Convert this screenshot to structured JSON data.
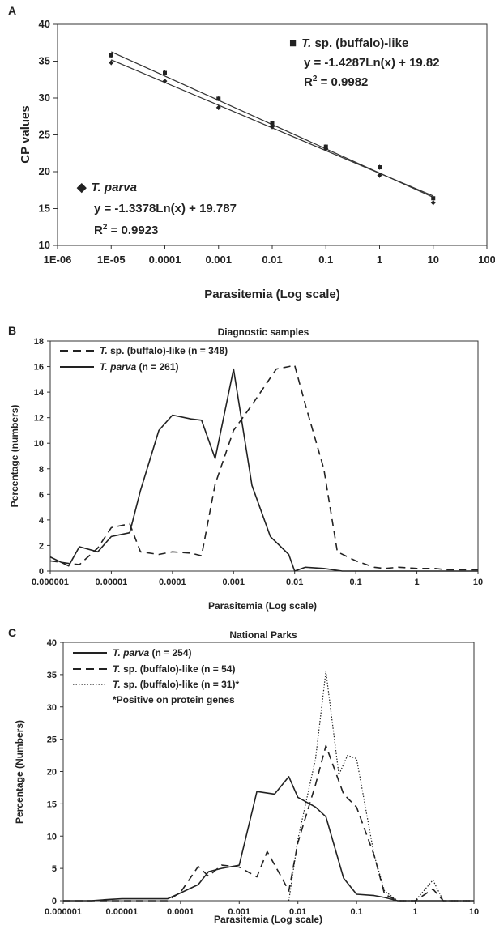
{
  "chart_data": [
    {
      "panel": "A",
      "type": "scatter",
      "xscale": "log",
      "xlim": [
        1e-06,
        100
      ],
      "ylim": [
        10,
        40
      ],
      "ylabel": "CP values",
      "xlabel": "Parasitemia (Log scale)",
      "xticks": [
        1e-06,
        1e-05,
        0.0001,
        0.001,
        0.01,
        0.1,
        1,
        10,
        100
      ],
      "xticklabels": [
        "1E-06",
        "1E-05",
        "0.0001",
        "0.001",
        "0.01",
        "0.1",
        "1",
        "10",
        "100"
      ],
      "yticks": [
        10,
        15,
        20,
        25,
        30,
        35,
        40
      ],
      "series": [
        {
          "name_italic": "T.",
          "name_rest": " sp. (buffalo)-like",
          "marker": "■",
          "equation": "y = -1.4287Ln(x) + 19.82",
          "r2_prefix": "R",
          "r2_sup": "2",
          "r2_value": " = 0.9982",
          "slope": -1.4287,
          "intercept": 19.82,
          "points": [
            [
              1e-05,
              35.8
            ],
            [
              0.0001,
              33.4
            ],
            [
              0.001,
              29.9
            ],
            [
              0.01,
              26.6
            ],
            [
              0.1,
              23.4
            ],
            [
              1,
              20.6
            ],
            [
              10,
              16.4
            ]
          ]
        },
        {
          "name_italic": "T. parva",
          "name_rest": "",
          "marker": "◆",
          "equation": "y = -1.3378Ln(x) + 19.787",
          "r2_prefix": "R",
          "r2_sup": "2",
          "r2_value": " = 0.9923",
          "slope": -1.3378,
          "intercept": 19.787,
          "points": [
            [
              1e-05,
              34.8
            ],
            [
              0.0001,
              32.3
            ],
            [
              0.001,
              28.7
            ],
            [
              0.01,
              26.1
            ],
            [
              0.1,
              23.1
            ],
            [
              1,
              19.5
            ],
            [
              10,
              15.8
            ]
          ]
        }
      ]
    },
    {
      "panel": "B",
      "type": "line",
      "title": "Diagnostic samples",
      "xscale": "log",
      "xlim": [
        1e-06,
        10
      ],
      "ylim": [
        0,
        18
      ],
      "ylabel": "Percentage (numbers)",
      "xlabel": "Parasitemia (Log scale)",
      "xticks": [
        1e-06,
        1e-05,
        0.0001,
        0.001,
        0.01,
        0.1,
        1,
        10
      ],
      "xticklabels": [
        "0.000001",
        "0.00001",
        "0.0001",
        "0.001",
        "0.01",
        "0.1",
        "1",
        "10"
      ],
      "yticks": [
        0,
        2,
        4,
        6,
        8,
        10,
        12,
        14,
        16,
        18
      ],
      "legend": "top-left",
      "series": [
        {
          "name_italic": "T.",
          "name_rest": " sp. (buffalo)-like (n = 348)",
          "dash": "dashed",
          "x": [
            1e-06,
            2e-06,
            3e-06,
            6e-06,
            1e-05,
            2e-05,
            3e-05,
            6e-05,
            0.0001,
            0.0002,
            0.0003,
            0.0005,
            0.001,
            0.002,
            0.005,
            0.008,
            0.01,
            0.015,
            0.03,
            0.05,
            0.1,
            0.2,
            0.3,
            0.5,
            1,
            2,
            3,
            5,
            10
          ],
          "y": [
            0.8,
            0.6,
            0.5,
            1.8,
            3.4,
            3.7,
            1.5,
            1.3,
            1.5,
            1.4,
            1.2,
            6.8,
            11.0,
            13.0,
            15.8,
            16.0,
            16.1,
            13.0,
            8.0,
            1.5,
            0.8,
            0.3,
            0.2,
            0.3,
            0.2,
            0.2,
            0.1,
            0.1,
            0.1
          ]
        },
        {
          "name_italic": "T. parva",
          "name_rest": " (n = 261)",
          "dash": "solid",
          "x": [
            1e-06,
            2e-06,
            3e-06,
            6e-06,
            1e-05,
            2e-05,
            3e-05,
            6e-05,
            0.0001,
            0.0002,
            0.0003,
            0.0005,
            0.001,
            0.002,
            0.004,
            0.008,
            0.01,
            0.015,
            0.03,
            0.06,
            0.1,
            0.2,
            0.3,
            0.5,
            1,
            2,
            3,
            5,
            10
          ],
          "y": [
            1.1,
            0.4,
            1.9,
            1.5,
            2.7,
            3.0,
            6.3,
            11.0,
            12.2,
            11.9,
            11.8,
            8.8,
            15.8,
            6.7,
            2.7,
            1.3,
            0.0,
            0.3,
            0.2,
            0.0,
            0.0,
            0.0,
            0.0,
            0.0,
            0.0,
            0.0,
            0.0,
            0.0,
            0.0
          ]
        }
      ]
    },
    {
      "panel": "C",
      "type": "line",
      "title": "National Parks",
      "xscale": "log",
      "xlim": [
        1e-06,
        10
      ],
      "ylim": [
        0,
        40
      ],
      "ylabel": "Percentage (Numbers)",
      "xlabel": "Parasitemia (Log scale)",
      "xticks": [
        1e-06,
        1e-05,
        0.0001,
        0.001,
        0.01,
        0.1,
        1,
        10
      ],
      "xticklabels": [
        "0.000001",
        "0.00001",
        "0.0001",
        "0.001",
        "0.01",
        "0.1",
        "1",
        "10"
      ],
      "yticks": [
        0,
        5,
        10,
        15,
        20,
        25,
        30,
        35,
        40
      ],
      "legend": "top-left",
      "legend_note": "*Positive on protein genes",
      "series": [
        {
          "name_italic": "T. parva",
          "name_rest": " (n = 254)",
          "dash": "solid",
          "x": [
            1e-06,
            3e-06,
            6e-06,
            1e-05,
            3e-05,
            6e-05,
            0.0001,
            0.0002,
            0.0003,
            0.0005,
            0.001,
            0.002,
            0.004,
            0.007,
            0.01,
            0.02,
            0.03,
            0.06,
            0.1,
            0.2,
            0.3,
            0.5,
            1,
            2,
            3,
            5,
            10
          ],
          "y": [
            0.0,
            0.0,
            0.2,
            0.3,
            0.3,
            0.3,
            1.2,
            2.5,
            4.5,
            5.0,
            5.5,
            16.9,
            16.5,
            19.2,
            16.0,
            14.5,
            13.0,
            3.5,
            1.0,
            0.8,
            0.5,
            0.0,
            0.0,
            0.0,
            0.0,
            0.0,
            0.0
          ]
        },
        {
          "name_italic": "T.",
          "name_rest": " sp. (buffalo)-like (n = 54)",
          "dash": "dashed",
          "x": [
            1e-06,
            3e-06,
            6e-06,
            1e-05,
            3e-05,
            6e-05,
            0.0001,
            0.0002,
            0.0003,
            0.0005,
            0.001,
            0.002,
            0.003,
            0.005,
            0.007,
            0.01,
            0.02,
            0.03,
            0.06,
            0.1,
            0.2,
            0.3,
            0.5,
            1,
            2,
            3,
            5,
            10
          ],
          "y": [
            0,
            0,
            0,
            0,
            0,
            0,
            1.3,
            5.3,
            3.8,
            5.5,
            5.2,
            3.7,
            7.6,
            4.0,
            1.5,
            9.0,
            18.0,
            24.0,
            16.5,
            14.5,
            7.0,
            1.0,
            0.0,
            0.0,
            1.8,
            0.0,
            0.0,
            0.0
          ]
        },
        {
          "name_italic": "T.",
          "name_rest": " sp. (buffalo)-like (n = 31)*",
          "dash": "dotted",
          "x": [
            0.007,
            0.01,
            0.02,
            0.03,
            0.05,
            0.07,
            0.1,
            0.2,
            0.3,
            0.5,
            1,
            2,
            3,
            5,
            10
          ],
          "y": [
            0.0,
            9.5,
            22.0,
            35.5,
            19.5,
            22.5,
            22.0,
            7.0,
            1.5,
            0.0,
            0.0,
            3.2,
            0.0,
            0.0,
            0.0
          ]
        }
      ]
    }
  ]
}
